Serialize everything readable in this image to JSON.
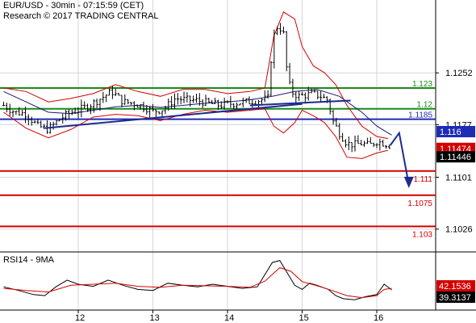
{
  "header": {
    "title": "EUR/USD - 30min - 07:15:59 (CET)",
    "credit": "Research © 2017 TRADING CENTRAL"
  },
  "rsi_panel": {
    "title": "RSI14 - 9MA"
  },
  "colors": {
    "green_level": "#1a8a1a",
    "blue_level": "#1d2bb5",
    "red_level": "#d40000",
    "candle": "#000000",
    "bollinger": "#d40000",
    "moving_average": "#1a1a7a",
    "trendline": "#1d2b8f",
    "forecast_arrow": "#1d2b8f",
    "rsi_line": "#000000",
    "rsi_ma": "#d40000",
    "grid": "#d6d6d6",
    "current_price_box": "#000000",
    "red_price_box": "#d40000",
    "blue_price_box": "#1d2bb5"
  },
  "chart_data": [
    {
      "type": "candlestick",
      "x_ticks": [
        "12",
        "13",
        "14",
        "15",
        "16"
      ],
      "y_ticks": [
        "1.1252",
        "1.1177",
        "1.1101",
        "1.1026"
      ],
      "ylim": [
        1.0993,
        1.1348
      ],
      "grid": true,
      "levels": [
        {
          "label": "1.123",
          "value": 1.123,
          "color": "green"
        },
        {
          "label": "1.12",
          "value": 1.12,
          "color": "green"
        },
        {
          "label": "1.1185",
          "value": 1.1185,
          "color": "blue"
        },
        {
          "label": "1.111",
          "value": 1.111,
          "color": "red"
        },
        {
          "label": "1.1075",
          "value": 1.1075,
          "color": "red"
        },
        {
          "label": "1.103",
          "value": 1.103,
          "color": "red"
        }
      ],
      "price_boxes": [
        {
          "label": "1.116",
          "value": 1.116,
          "color": "blue"
        },
        {
          "label": "1.11474",
          "value": 1.11474,
          "color": "red"
        },
        {
          "label": "1.11446",
          "value": 1.11446,
          "color": "black"
        }
      ],
      "day_positions": [
        1.0,
        2.0,
        3.0,
        4.0,
        5.0
      ],
      "price_path": [
        [
          0.0,
          1.1205
        ],
        [
          0.15,
          1.1195
        ],
        [
          0.3,
          1.1193
        ],
        [
          0.45,
          1.1175
        ],
        [
          0.6,
          1.117
        ],
        [
          0.75,
          1.1185
        ],
        [
          0.9,
          1.1195
        ],
        [
          1.0,
          1.1198
        ],
        [
          1.15,
          1.1205
        ],
        [
          1.3,
          1.1215
        ],
        [
          1.45,
          1.1225
        ],
        [
          1.6,
          1.121
        ],
        [
          1.75,
          1.1208
        ],
        [
          1.9,
          1.1202
        ],
        [
          2.0,
          1.1196
        ],
        [
          2.15,
          1.12
        ],
        [
          2.3,
          1.1215
        ],
        [
          2.45,
          1.1213
        ],
        [
          2.6,
          1.1212
        ],
        [
          2.75,
          1.1208
        ],
        [
          2.9,
          1.1205
        ],
        [
          3.0,
          1.1207
        ],
        [
          3.1,
          1.1208
        ],
        [
          3.25,
          1.121
        ],
        [
          3.4,
          1.1212
        ],
        [
          3.55,
          1.1215
        ],
        [
          3.6,
          1.13
        ],
        [
          3.68,
          1.1322
        ],
        [
          3.75,
          1.1308
        ],
        [
          3.8,
          1.125
        ],
        [
          3.85,
          1.1225
        ],
        [
          3.95,
          1.1218
        ],
        [
          4.05,
          1.122
        ],
        [
          4.15,
          1.1222
        ],
        [
          4.25,
          1.1218
        ],
        [
          4.35,
          1.1212
        ],
        [
          4.4,
          1.1185
        ],
        [
          4.5,
          1.1165
        ],
        [
          4.6,
          1.115
        ],
        [
          4.7,
          1.1148
        ],
        [
          4.8,
          1.115
        ],
        [
          4.9,
          1.1147
        ],
        [
          5.0,
          1.1153
        ],
        [
          5.1,
          1.115
        ],
        [
          5.2,
          1.1146
        ]
      ],
      "trendlines": [
        {
          "from": [
            0.55,
            1.1172
          ],
          "to": [
            4.0,
            1.1207
          ]
        },
        {
          "from": [
            3.3,
            1.1205
          ],
          "to": [
            4.65,
            1.1212
          ]
        }
      ],
      "forecast_arrow": [
        [
          5.18,
          1.1147
        ],
        [
          5.3,
          1.1165
        ],
        [
          5.43,
          1.109
        ]
      ],
      "blue_ma_path": [
        [
          0.0,
          1.1225
        ],
        [
          0.3,
          1.121
        ],
        [
          0.6,
          1.1195
        ],
        [
          0.9,
          1.1193
        ],
        [
          1.2,
          1.1198
        ],
        [
          1.5,
          1.1203
        ],
        [
          1.8,
          1.1205
        ],
        [
          2.1,
          1.1202
        ],
        [
          2.4,
          1.1205
        ],
        [
          2.7,
          1.1208
        ],
        [
          3.0,
          1.121
        ],
        [
          3.3,
          1.1213
        ],
        [
          3.6,
          1.1218
        ],
        [
          3.9,
          1.1225
        ],
        [
          4.2,
          1.1228
        ],
        [
          4.5,
          1.1218
        ],
        [
          4.8,
          1.1195
        ],
        [
          5.0,
          1.1175
        ],
        [
          5.2,
          1.1162
        ]
      ],
      "bollinger_upper": [
        [
          0.0,
          1.123
        ],
        [
          0.3,
          1.1225
        ],
        [
          0.6,
          1.121
        ],
        [
          0.9,
          1.1215
        ],
        [
          1.2,
          1.1222
        ],
        [
          1.5,
          1.1235
        ],
        [
          1.8,
          1.1225
        ],
        [
          2.1,
          1.1218
        ],
        [
          2.4,
          1.1228
        ],
        [
          2.7,
          1.1228
        ],
        [
          3.0,
          1.1222
        ],
        [
          3.3,
          1.1225
        ],
        [
          3.5,
          1.123
        ],
        [
          3.62,
          1.1305
        ],
        [
          3.75,
          1.134
        ],
        [
          3.9,
          1.133
        ],
        [
          4.0,
          1.129
        ],
        [
          4.15,
          1.1262
        ],
        [
          4.3,
          1.1252
        ],
        [
          4.45,
          1.1235
        ],
        [
          4.6,
          1.1205
        ],
        [
          4.8,
          1.1175
        ],
        [
          5.0,
          1.116
        ],
        [
          5.15,
          1.1157
        ]
      ],
      "bollinger_lower": [
        [
          0.0,
          1.1195
        ],
        [
          0.3,
          1.1172
        ],
        [
          0.6,
          1.1158
        ],
        [
          0.9,
          1.117
        ],
        [
          1.2,
          1.1188
        ],
        [
          1.5,
          1.1192
        ],
        [
          1.8,
          1.119
        ],
        [
          2.1,
          1.1183
        ],
        [
          2.4,
          1.1192
        ],
        [
          2.7,
          1.1198
        ],
        [
          3.0,
          1.1195
        ],
        [
          3.3,
          1.1198
        ],
        [
          3.5,
          1.12
        ],
        [
          3.62,
          1.1175
        ],
        [
          3.75,
          1.1165
        ],
        [
          3.9,
          1.118
        ],
        [
          4.0,
          1.1198
        ],
        [
          4.15,
          1.119
        ],
        [
          4.3,
          1.118
        ],
        [
          4.45,
          1.116
        ],
        [
          4.6,
          1.113
        ],
        [
          4.8,
          1.1128
        ],
        [
          5.0,
          1.1136
        ],
        [
          5.15,
          1.114
        ]
      ]
    },
    {
      "type": "line",
      "title": "RSI14 - 9MA",
      "y_ticks": [
        "42.1536",
        "39.3137"
      ],
      "ylim": [
        0,
        100
      ],
      "series": [
        {
          "values": [
            [
              0.0,
              45
            ],
            [
              0.2,
              38
            ],
            [
              0.4,
              30
            ],
            [
              0.55,
              28
            ],
            [
              0.7,
              45
            ],
            [
              0.85,
              58
            ],
            [
              1.0,
              50
            ],
            [
              1.2,
              46
            ],
            [
              1.4,
              58
            ],
            [
              1.6,
              48
            ],
            [
              1.8,
              40
            ],
            [
              2.0,
              38
            ],
            [
              2.2,
              52
            ],
            [
              2.4,
              48
            ],
            [
              2.6,
              45
            ],
            [
              2.8,
              50
            ],
            [
              3.0,
              46
            ],
            [
              3.2,
              42
            ],
            [
              3.4,
              45
            ],
            [
              3.6,
              92
            ],
            [
              3.7,
              96
            ],
            [
              3.8,
              72
            ],
            [
              3.9,
              48
            ],
            [
              4.0,
              40
            ],
            [
              4.1,
              52
            ],
            [
              4.2,
              48
            ],
            [
              4.35,
              40
            ],
            [
              4.45,
              28
            ],
            [
              4.55,
              22
            ],
            [
              4.7,
              20
            ],
            [
              4.85,
              26
            ],
            [
              5.0,
              30
            ],
            [
              5.1,
              50
            ],
            [
              5.2,
              39
            ]
          ]
        },
        {
          "values": [
            [
              0.0,
              42
            ],
            [
              0.3,
              38
            ],
            [
              0.6,
              35
            ],
            [
              0.9,
              48
            ],
            [
              1.2,
              50
            ],
            [
              1.5,
              52
            ],
            [
              1.8,
              46
            ],
            [
              2.1,
              44
            ],
            [
              2.4,
              48
            ],
            [
              2.7,
              47
            ],
            [
              3.0,
              46
            ],
            [
              3.3,
              44
            ],
            [
              3.5,
              56
            ],
            [
              3.7,
              82
            ],
            [
              3.85,
              75
            ],
            [
              4.0,
              55
            ],
            [
              4.2,
              47
            ],
            [
              4.4,
              38
            ],
            [
              4.6,
              28
            ],
            [
              4.8,
              24
            ],
            [
              5.0,
              28
            ],
            [
              5.1,
              40
            ],
            [
              5.2,
              42
            ]
          ]
        }
      ]
    }
  ]
}
